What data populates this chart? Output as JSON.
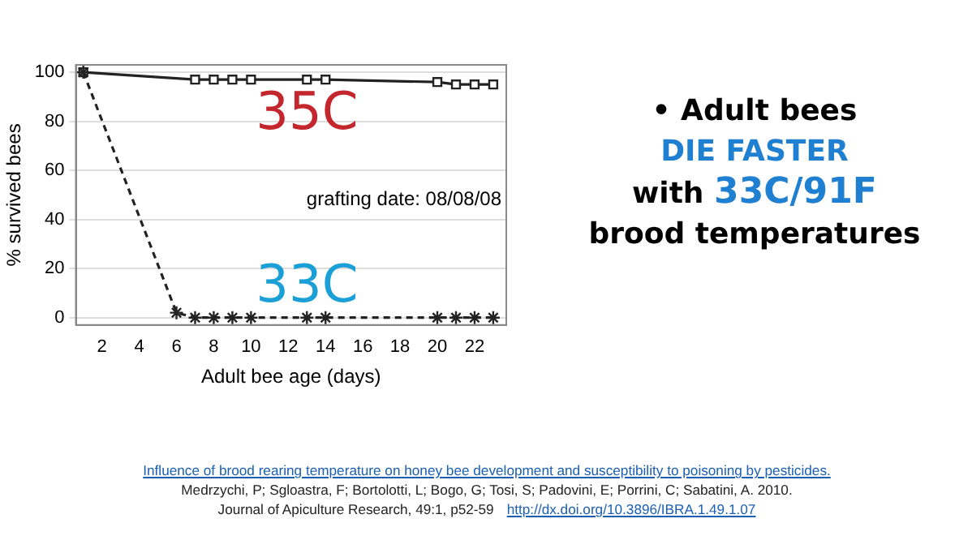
{
  "chart_data": {
    "type": "line",
    "xlabel": "Adult bee age (days)",
    "ylabel": "% survived bees",
    "xlim": [
      0.6,
      23.7
    ],
    "xticks": [
      2,
      4,
      6,
      8,
      10,
      12,
      14,
      16,
      18,
      20,
      22
    ],
    "ylim": [
      -3,
      103
    ],
    "yticks": [
      0,
      20,
      40,
      60,
      80,
      100
    ],
    "grid": "y",
    "legend": false,
    "series": [
      {
        "name": "35C",
        "color": "#222222",
        "marker": "square",
        "line_style": "solid",
        "x": [
          1,
          7,
          8,
          9,
          10,
          13,
          14,
          20,
          21,
          22,
          23
        ],
        "values": [
          100,
          97,
          97,
          97,
          97,
          97,
          97,
          96,
          95,
          95,
          95
        ]
      },
      {
        "name": "33C",
        "color": "#222222",
        "marker": "cross",
        "line_style": "dashed",
        "x": [
          1,
          6,
          7,
          8,
          9,
          10,
          13,
          14,
          20,
          21,
          22,
          23
        ],
        "values": [
          100,
          2,
          0,
          0,
          0,
          0,
          0,
          0,
          0,
          0,
          0,
          0
        ]
      }
    ],
    "annotations": [
      "grafting date: 08/08/08",
      "• Adult bees",
      "DIE FASTER",
      "with 33C/91F",
      "brood temperatures",
      "Influence of brood rearing temperature on honey bee development and susceptibility to poisoning by pesticides.",
      "Medrzychi, P; Sgloastra, F; Bortolotti, L; Bogo, G; Tosi, S; Padovini, E; Porrini, C; Sabatini, A.   2010.",
      "Journal of Apiculture Research, 49:1, p52-59",
      "http://dx.doi.org/10.3896/IBRA.1.49.1.07"
    ]
  }
}
